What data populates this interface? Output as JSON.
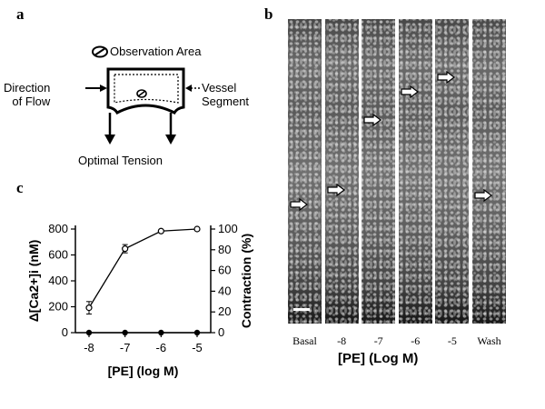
{
  "panels": {
    "a": "a",
    "b": "b",
    "c": "c"
  },
  "diagram": {
    "observation_area": "Observation Area",
    "direction_line1": "Direction",
    "direction_line2": "of Flow",
    "vessel_line1": "Vessel",
    "vessel_line2": "Segment",
    "optimal_tension": "Optimal Tension"
  },
  "micrographs": {
    "lanes": [
      {
        "label": "Basal",
        "arrow_level": 0.61
      },
      {
        "label": "-8",
        "arrow_level": 0.56
      },
      {
        "label": "-7",
        "arrow_level": 0.33
      },
      {
        "label": "-6",
        "arrow_level": 0.24
      },
      {
        "label": "-5",
        "arrow_level": 0.19
      },
      {
        "label": "Wash",
        "arrow_level": 0.58
      }
    ],
    "xlabel": "[PE] (Log M)"
  },
  "chart_data": {
    "type": "line",
    "categories": [
      "-8",
      "-7",
      "-6",
      "-5"
    ],
    "xlabel": "[PE] (log M)",
    "ylabel_left": "Δ[Ca2+]i (nM)",
    "ylabel_right": "Contraction (%)",
    "ylim_left": [
      0,
      800
    ],
    "ylim_right": [
      0,
      100
    ],
    "yticks_left": [
      "0",
      "200",
      "400",
      "600",
      "800"
    ],
    "yticks_right": [
      "0",
      "20",
      "40",
      "60",
      "80",
      "100"
    ],
    "series": [
      {
        "values": [
          24,
          81,
          98,
          100
        ],
        "errors": [
          6,
          4,
          1,
          0
        ],
        "marker": "open-circle"
      },
      {
        "values": [
          0,
          0,
          0,
          0
        ],
        "marker": "filled-circle"
      }
    ]
  }
}
